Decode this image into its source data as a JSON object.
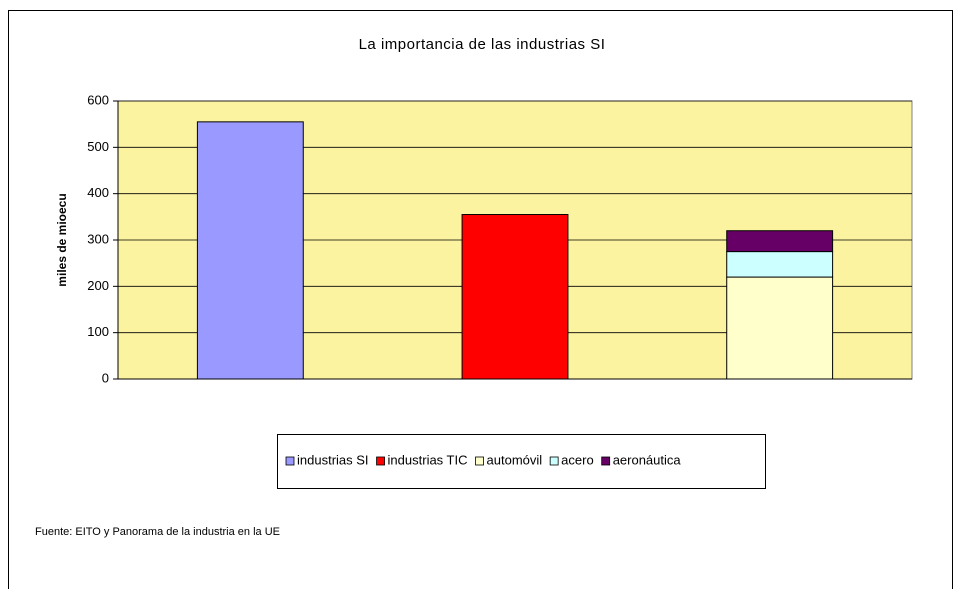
{
  "chart_data": {
    "type": "bar",
    "stacked": true,
    "title": "La importancia de las industrias SI",
    "y_label": "miles de mioecu",
    "note": "Fuente: EITO y Panorama de la industria en la UE",
    "categories": [
      null,
      null,
      null
    ],
    "series": [
      {
        "name": "industrias SI",
        "color": "#9999ff",
        "values": [
          555,
          null,
          null
        ]
      },
      {
        "name": "industrias TIC",
        "color": "#ff0000",
        "values": [
          null,
          355,
          null
        ]
      },
      {
        "name": "automóvil",
        "color": "#ffffcc",
        "values": [
          null,
          null,
          220
        ]
      },
      {
        "name": "acero",
        "color": "#ccffff",
        "values": [
          null,
          null,
          55
        ]
      },
      {
        "name": "aeronáutica",
        "color": "#660066",
        "values": [
          null,
          null,
          45
        ]
      }
    ],
    "ylim": [
      0,
      600
    ],
    "yticks": [
      0,
      100,
      200,
      300,
      400,
      500,
      600
    ],
    "grid": true,
    "plot_background": "#fbf3a0",
    "legend": "bottom"
  }
}
